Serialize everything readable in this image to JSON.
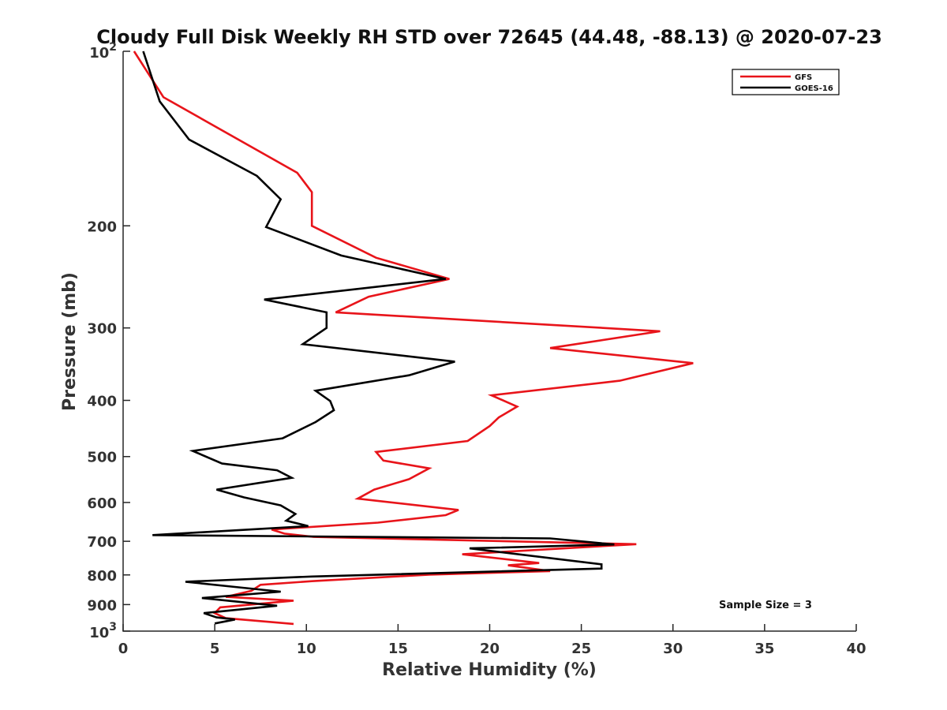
{
  "chart_data": {
    "type": "line",
    "title": "Cloudy Full Disk Weekly RH STD over 72645 (44.48, -88.13) @ 2020-07-23",
    "xlabel": "Relative Humidity (%)",
    "ylabel": "Pressure (mb)",
    "xlim": [
      0,
      40
    ],
    "ylim": [
      100,
      1000
    ],
    "y_scale": "log",
    "y_reversed": true,
    "grid": false,
    "legend_position": "top-right",
    "x_ticks": [
      0,
      5,
      10,
      15,
      20,
      25,
      30,
      35,
      40
    ],
    "y_ticks": [
      {
        "value": 100,
        "label": "10",
        "exp": "2"
      },
      {
        "value": 200,
        "label": "200"
      },
      {
        "value": 300,
        "label": "300"
      },
      {
        "value": 400,
        "label": "400"
      },
      {
        "value": 500,
        "label": "500"
      },
      {
        "value": 600,
        "label": "600"
      },
      {
        "value": 700,
        "label": "700"
      },
      {
        "value": 800,
        "label": "800"
      },
      {
        "value": 900,
        "label": "900"
      },
      {
        "value": 1000,
        "label": "10",
        "exp": "3"
      }
    ],
    "annotation": "Sample Size = 3",
    "series": [
      {
        "name": "GFS",
        "color": "#e8141a",
        "points": [
          [
            0.6,
            100
          ],
          [
            2.2,
            120
          ],
          [
            9.5,
            162
          ],
          [
            10.3,
            175
          ],
          [
            10.3,
            200
          ],
          [
            13.8,
            227
          ],
          [
            17.8,
            247
          ],
          [
            13.4,
            265
          ],
          [
            11.6,
            282
          ],
          [
            29.3,
            304
          ],
          [
            23.3,
            325
          ],
          [
            31.1,
            345
          ],
          [
            27.1,
            370
          ],
          [
            20.1,
            392
          ],
          [
            21.5,
            410
          ],
          [
            20.5,
            428
          ],
          [
            20.0,
            443
          ],
          [
            18.8,
            470
          ],
          [
            13.8,
            491
          ],
          [
            14.2,
            508
          ],
          [
            16.7,
            524
          ],
          [
            15.6,
            547
          ],
          [
            13.7,
            570
          ],
          [
            12.8,
            591
          ],
          [
            18.3,
            618
          ],
          [
            17.6,
            631
          ],
          [
            13.9,
            650
          ],
          [
            8.1,
            668
          ],
          [
            8.8,
            679
          ],
          [
            10.4,
            688
          ],
          [
            28.0,
            708
          ],
          [
            18.5,
            737
          ],
          [
            22.7,
            763
          ],
          [
            21.0,
            770
          ],
          [
            23.3,
            788
          ],
          [
            16.7,
            799
          ],
          [
            10.3,
            820
          ],
          [
            7.5,
            832
          ],
          [
            7.0,
            852
          ],
          [
            5.6,
            873
          ],
          [
            9.3,
            886
          ],
          [
            5.3,
            910
          ],
          [
            5.0,
            931
          ],
          [
            5.6,
            950
          ],
          [
            9.3,
            972
          ]
        ]
      },
      {
        "name": "GOES-16",
        "color": "#000000",
        "points": [
          [
            1.1,
            100
          ],
          [
            2.0,
            122
          ],
          [
            3.6,
            142
          ],
          [
            7.3,
            164
          ],
          [
            8.6,
            180
          ],
          [
            7.8,
            201
          ],
          [
            11.9,
            225
          ],
          [
            17.6,
            247
          ],
          [
            7.7,
            268
          ],
          [
            11.1,
            282
          ],
          [
            11.1,
            300
          ],
          [
            9.8,
            320
          ],
          [
            18.1,
            343
          ],
          [
            15.6,
            362
          ],
          [
            10.5,
            385
          ],
          [
            11.3,
            401
          ],
          [
            11.5,
            416
          ],
          [
            10.5,
            436
          ],
          [
            8.7,
            465
          ],
          [
            3.8,
            489
          ],
          [
            5.4,
            514
          ],
          [
            8.4,
            528
          ],
          [
            9.2,
            544
          ],
          [
            5.1,
            570
          ],
          [
            6.6,
            588
          ],
          [
            8.6,
            607
          ],
          [
            9.4,
            628
          ],
          [
            8.9,
            645
          ],
          [
            10.1,
            659
          ],
          [
            1.6,
            683
          ],
          [
            23.3,
            692
          ],
          [
            26.8,
            709
          ],
          [
            18.9,
            720
          ],
          [
            26.1,
            767
          ],
          [
            26.1,
            780
          ],
          [
            10.3,
            805
          ],
          [
            3.4,
            822
          ],
          [
            6.1,
            839
          ],
          [
            8.6,
            855
          ],
          [
            4.3,
            877
          ],
          [
            8.4,
            904
          ],
          [
            4.4,
            931
          ],
          [
            5.1,
            947
          ],
          [
            6.1,
            955
          ],
          [
            5.0,
            970
          ]
        ]
      }
    ]
  }
}
